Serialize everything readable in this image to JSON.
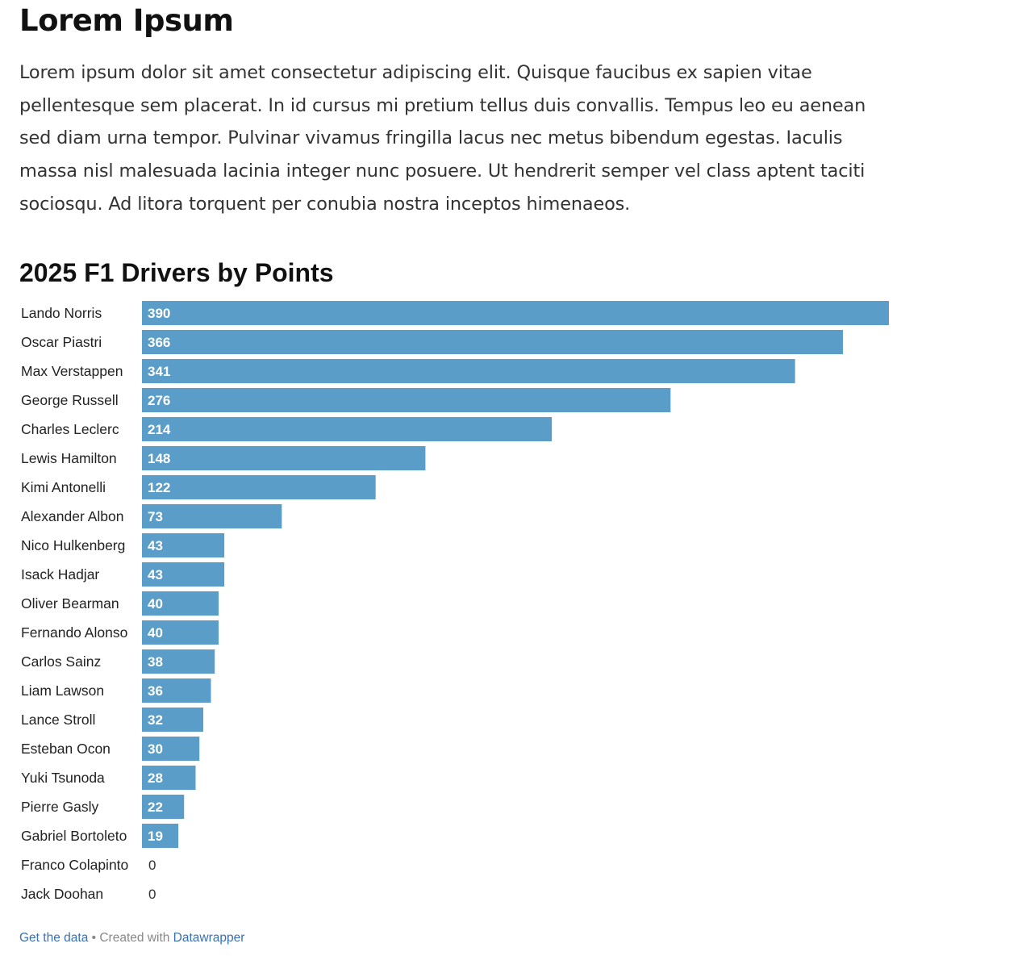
{
  "page": {
    "title": "Lorem Ipsum",
    "intro": "Lorem ipsum dolor sit amet consectetur adipiscing elit. Quisque faucibus ex sapien vitae pellentesque sem placerat. In id cursus mi pretium tellus duis convallis. Tempus leo eu aenean sed diam urna tempor. Pulvinar vivamus fringilla lacus nec metus bibendum egestas. Iaculis massa nisl malesuada lacinia integer nunc posuere. Ut hendrerit semper vel class aptent taciti sociosqu. Ad litora torquent per conubia nostra inceptos himenaeos."
  },
  "chart_data": {
    "type": "bar",
    "orientation": "horizontal",
    "title": "2025 F1 Drivers by Points",
    "xlabel": "",
    "ylabel": "",
    "xlim": [
      0,
      390
    ],
    "categories": [
      "Lando Norris",
      "Oscar Piastri",
      "Max Verstappen",
      "George Russell",
      "Charles Leclerc",
      "Lewis Hamilton",
      "Kimi Antonelli",
      "Alexander Albon",
      "Nico Hulkenberg",
      "Isack Hadjar",
      "Oliver Bearman",
      "Fernando Alonso",
      "Carlos Sainz",
      "Liam Lawson",
      "Lance Stroll",
      "Esteban Ocon",
      "Yuki Tsunoda",
      "Pierre Gasly",
      "Gabriel Bortoleto",
      "Franco Colapinto",
      "Jack Doohan"
    ],
    "values": [
      390,
      366,
      341,
      276,
      214,
      148,
      122,
      73,
      43,
      43,
      40,
      40,
      38,
      36,
      32,
      30,
      28,
      22,
      19,
      0,
      0
    ],
    "bar_color": "#5a9dc9",
    "label_inside_color": "#ffffff",
    "label_outside_color": "#333333"
  },
  "footer": {
    "get_data": "Get the data",
    "separator": " • Created with ",
    "datawrapper": "Datawrapper"
  }
}
